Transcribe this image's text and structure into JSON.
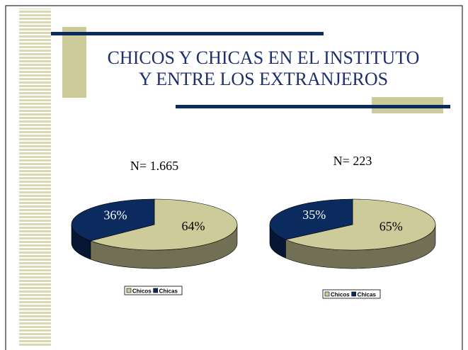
{
  "title": [
    "CHICOS Y CHICAS EN EL INSTITUTO",
    "Y ENTRE LOS EXTRANJEROS"
  ],
  "chart_data": [
    {
      "type": "pie",
      "title": "N= 1.665",
      "categories": [
        "Chicos",
        "Chicas"
      ],
      "values": [
        64,
        36
      ],
      "value_labels": [
        "64%",
        "36%"
      ],
      "colors": [
        "#cdcb9a",
        "#0b2a5e"
      ]
    },
    {
      "type": "pie",
      "title": "N= 223",
      "categories": [
        "Chicos",
        "Chicas"
      ],
      "values": [
        65,
        35
      ],
      "value_labels": [
        "65%",
        "35%"
      ],
      "colors": [
        "#cdcb9a",
        "#0b2a5e"
      ]
    }
  ]
}
